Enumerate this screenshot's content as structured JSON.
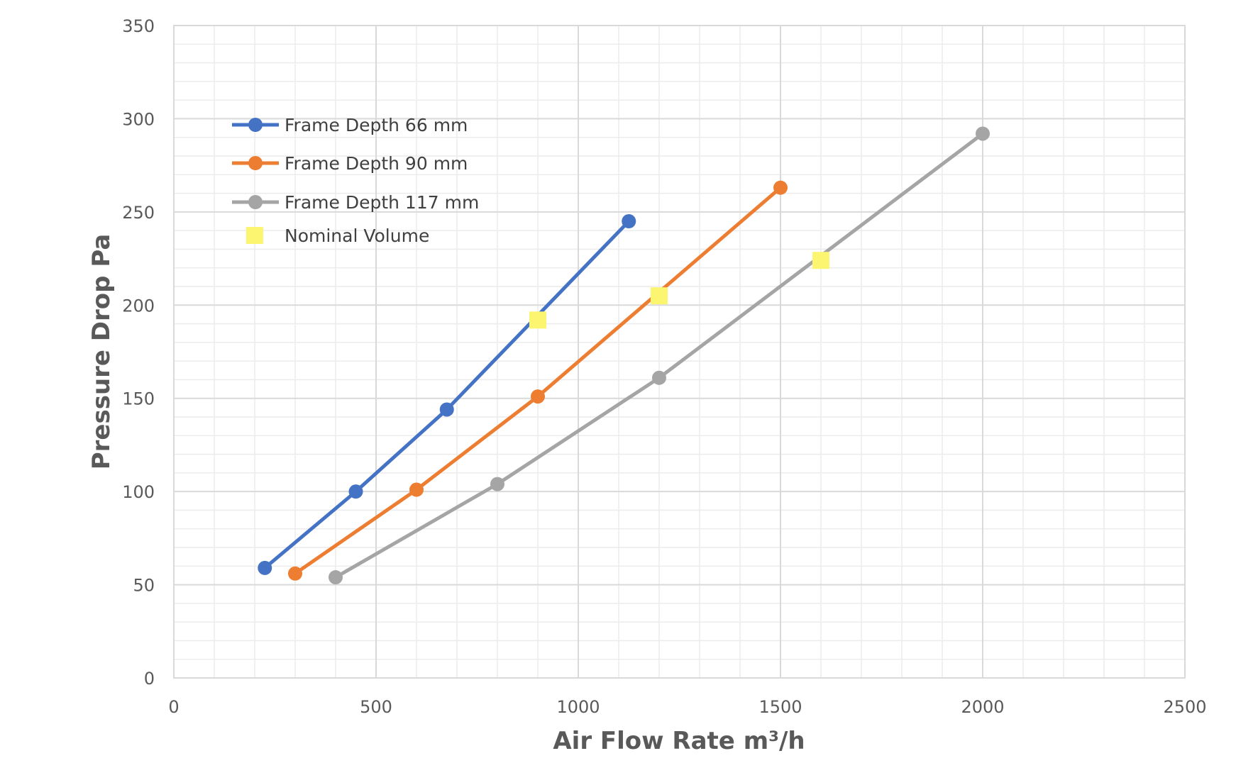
{
  "chart_data": {
    "type": "scatter",
    "xlabel": "Air Flow Rate m³/h",
    "ylabel": "Pressure Drop Pa",
    "xlim": [
      0,
      2500
    ],
    "ylim": [
      0,
      350
    ],
    "x_major_step": 500,
    "x_minor_step": 100,
    "y_major_step": 50,
    "y_minor_step": 10,
    "x_ticks": [
      "0",
      "500",
      "1000",
      "1500",
      "2000",
      "2500"
    ],
    "y_ticks": [
      "0",
      "50",
      "100",
      "150",
      "200",
      "250",
      "300",
      "350"
    ],
    "grid": true,
    "legend_position": "top-left",
    "series": [
      {
        "name": "Frame Depth 66 mm",
        "color": "#4472c4",
        "marker": "circle",
        "connected": true,
        "x": [
          225,
          450,
          675,
          1125
        ],
        "y": [
          59,
          100,
          144,
          245
        ]
      },
      {
        "name": "Frame Depth 90 mm",
        "color": "#ed7d31",
        "marker": "circle",
        "connected": true,
        "x": [
          300,
          600,
          900,
          1500
        ],
        "y": [
          56,
          101,
          151,
          263
        ]
      },
      {
        "name": "Frame Depth 117 mm",
        "color": "#a5a5a5",
        "marker": "circle",
        "connected": true,
        "x": [
          400,
          800,
          1200,
          2000
        ],
        "y": [
          54,
          104,
          161,
          292
        ]
      },
      {
        "name": "Nominal Volume",
        "color": "#fbf56f",
        "marker": "square",
        "connected": false,
        "x": [
          900,
          1200,
          1600
        ],
        "y": [
          192,
          205,
          224
        ]
      }
    ]
  }
}
